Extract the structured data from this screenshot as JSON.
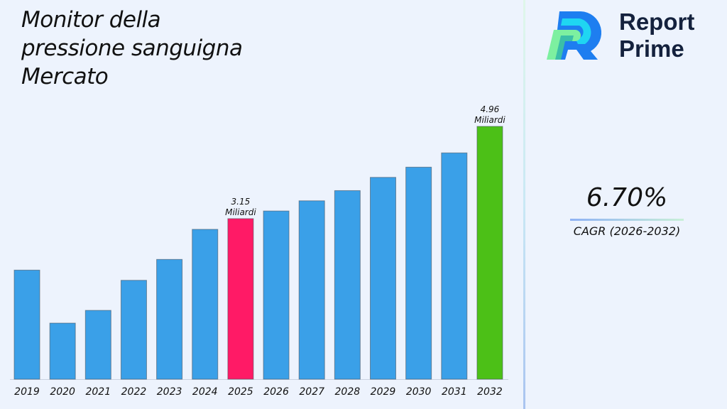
{
  "title_lines": [
    "Monitor della",
    "pressione sanguigna",
    "Mercato"
  ],
  "brand": {
    "line1": "Report",
    "line2": "Prime"
  },
  "cagr": {
    "value": "6.70%",
    "label": "CAGR (2026-2032)"
  },
  "colors": {
    "default_bar": "#3aa0e8",
    "highlight_2025": "#ff1a66",
    "highlight_2032": "#4cc017",
    "background": "#edf3fd"
  },
  "chart_data": {
    "type": "bar",
    "categories": [
      "2019",
      "2020",
      "2021",
      "2022",
      "2023",
      "2024",
      "2025",
      "2026",
      "2027",
      "2028",
      "2029",
      "2030",
      "2031",
      "2032"
    ],
    "values": [
      2.14,
      1.1,
      1.35,
      1.94,
      2.35,
      2.94,
      3.15,
      3.3,
      3.5,
      3.7,
      3.96,
      4.16,
      4.44,
      4.96
    ],
    "unit": "Miliardi",
    "data_labels": [
      {
        "category": "2025",
        "value": "3.15",
        "unit": "Miliardi"
      },
      {
        "category": "2032",
        "value": "4.96",
        "unit": "Miliardi"
      }
    ],
    "title": "",
    "xlabel": "",
    "ylabel": "",
    "grid": false,
    "yaxis_visible": false
  }
}
